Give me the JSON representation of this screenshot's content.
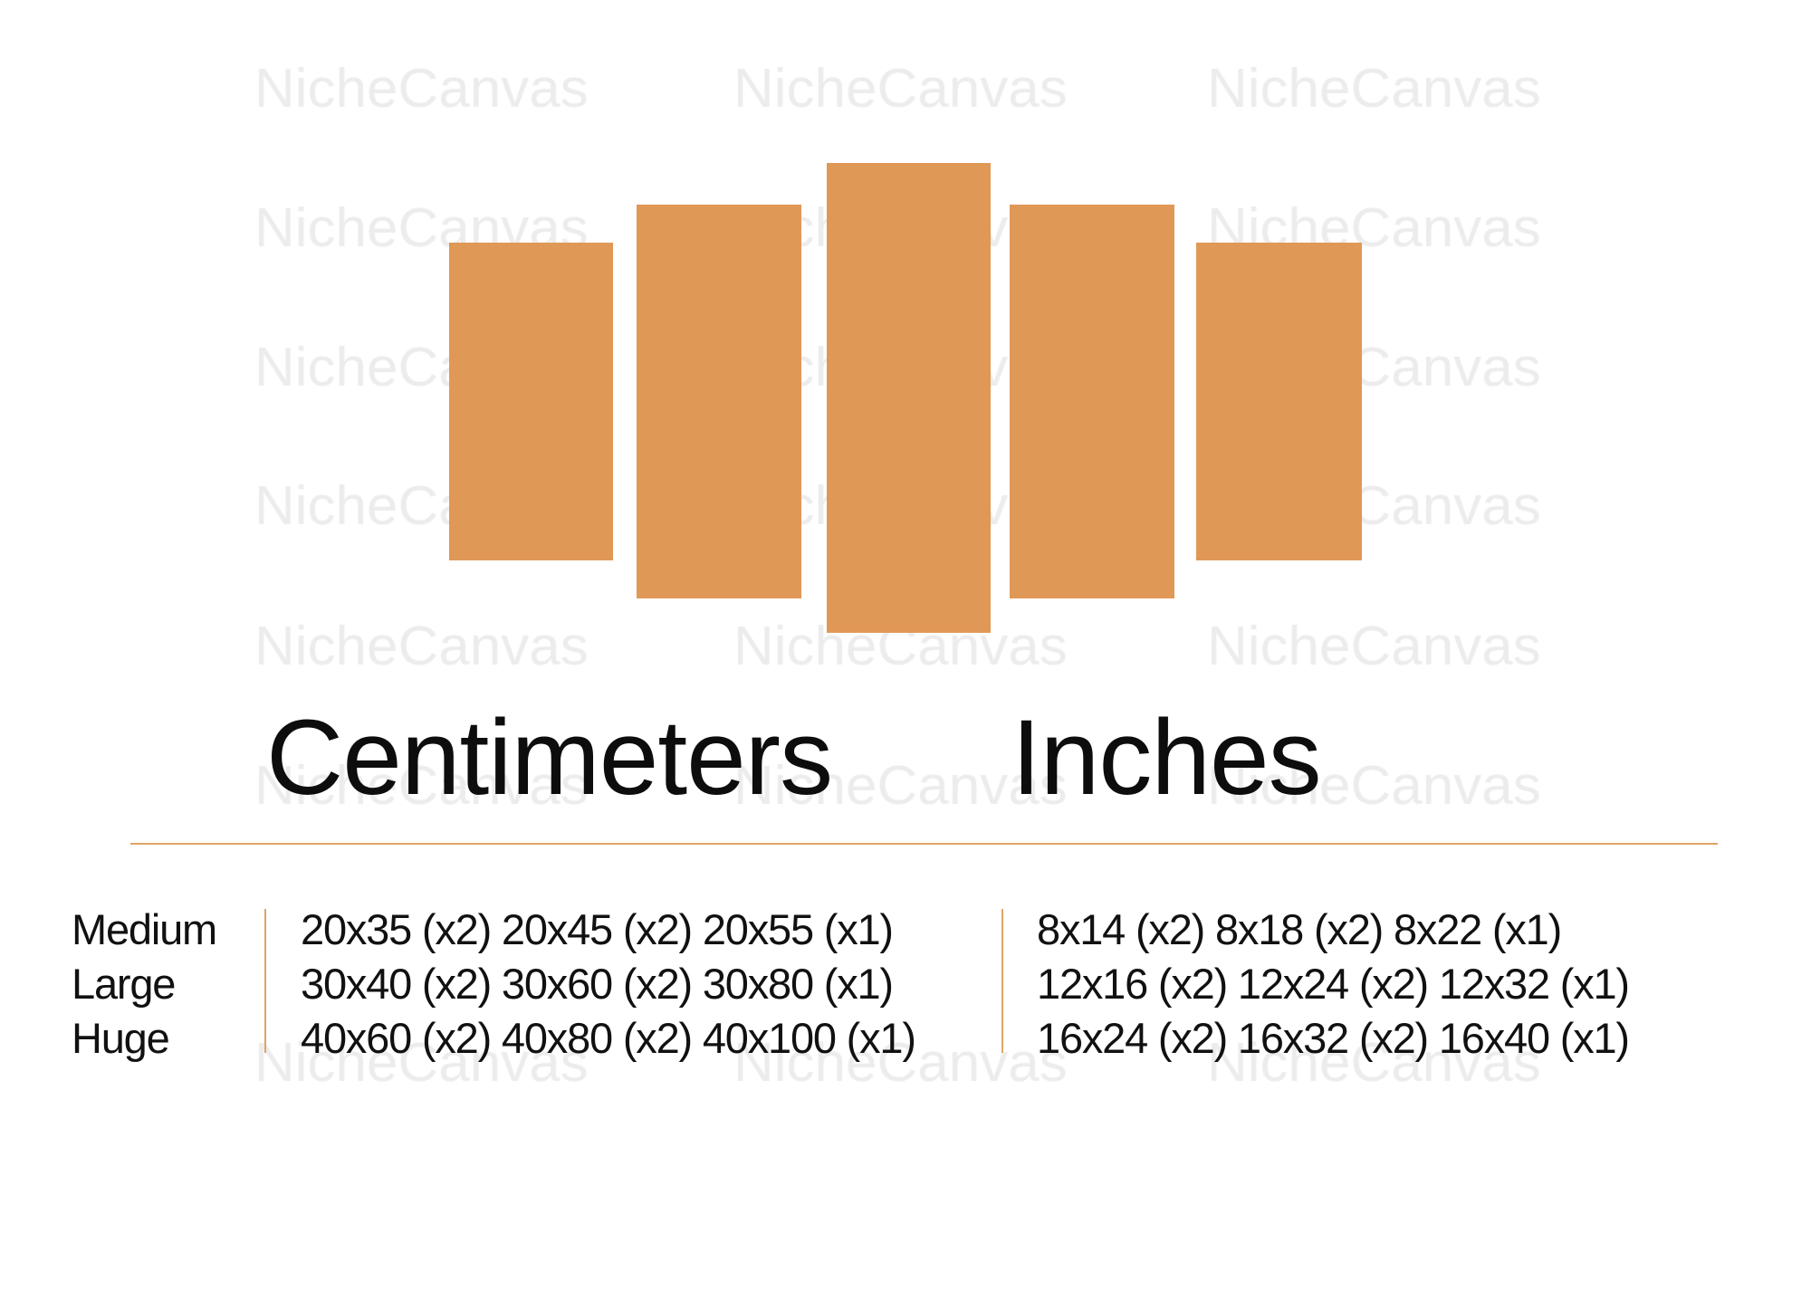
{
  "watermark": "NicheCanvas",
  "colors": {
    "panel": "#DF9855",
    "rule": "#E0A565",
    "watermark": "#ECECEC"
  },
  "panels": [
    "panel-1",
    "panel-2",
    "panel-3",
    "panel-4",
    "panel-5"
  ],
  "headings": {
    "cm": "Centimeters",
    "in": "Inches"
  },
  "sizes": [
    {
      "label": "Medium",
      "cm": "20x35 (x2) 20x45 (x2) 20x55 (x1)",
      "in": "8x14 (x2) 8x18 (x2) 8x22 (x1)"
    },
    {
      "label": "Large",
      "cm": "30x40 (x2) 30x60 (x2) 30x80 (x1)",
      "in": "12x16 (x2) 12x24 (x2) 12x32 (x1)"
    },
    {
      "label": "Huge",
      "cm": "40x60 (x2) 40x80 (x2) 40x100 (x1)",
      "in": "16x24 (x2) 16x32 (x2) 16x40 (x1)"
    }
  ]
}
